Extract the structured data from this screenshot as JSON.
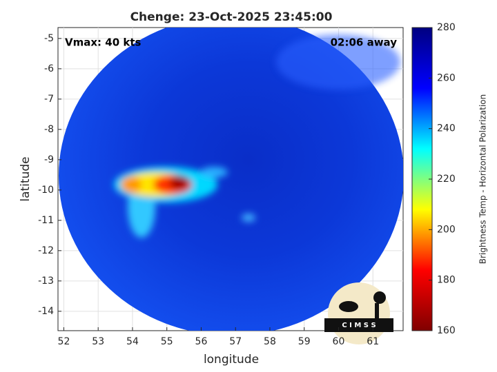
{
  "chart_data": {
    "type": "image",
    "title": "Chenge: 23-Oct-2025 23:45:00",
    "annotations": [
      "Vmax: 40 kts",
      "02:06 away"
    ],
    "xlabel": "longitude",
    "ylabel": "latitude",
    "xlim": [
      51.83,
      61.88
    ],
    "xticks": [
      52,
      53,
      54,
      55,
      56,
      57,
      58,
      59,
      60,
      61
    ],
    "ylim": [
      -14.64,
      -4.64
    ],
    "yticks": [
      -14,
      -13,
      -12,
      -11,
      -10,
      -9,
      -8,
      -7,
      -6,
      -5
    ],
    "grid": true,
    "colorbar": {
      "label": "Brightness Temp - Horizontal Polarization",
      "clim": [
        160,
        280
      ],
      "ticks": [
        160,
        180,
        200,
        220,
        240,
        260,
        280
      ],
      "colormap": [
        "#800000",
        "#ff0000",
        "#ffff00",
        "#00ffff",
        "#0000ff",
        "#000080"
      ]
    },
    "logo": "C I M S S"
  }
}
